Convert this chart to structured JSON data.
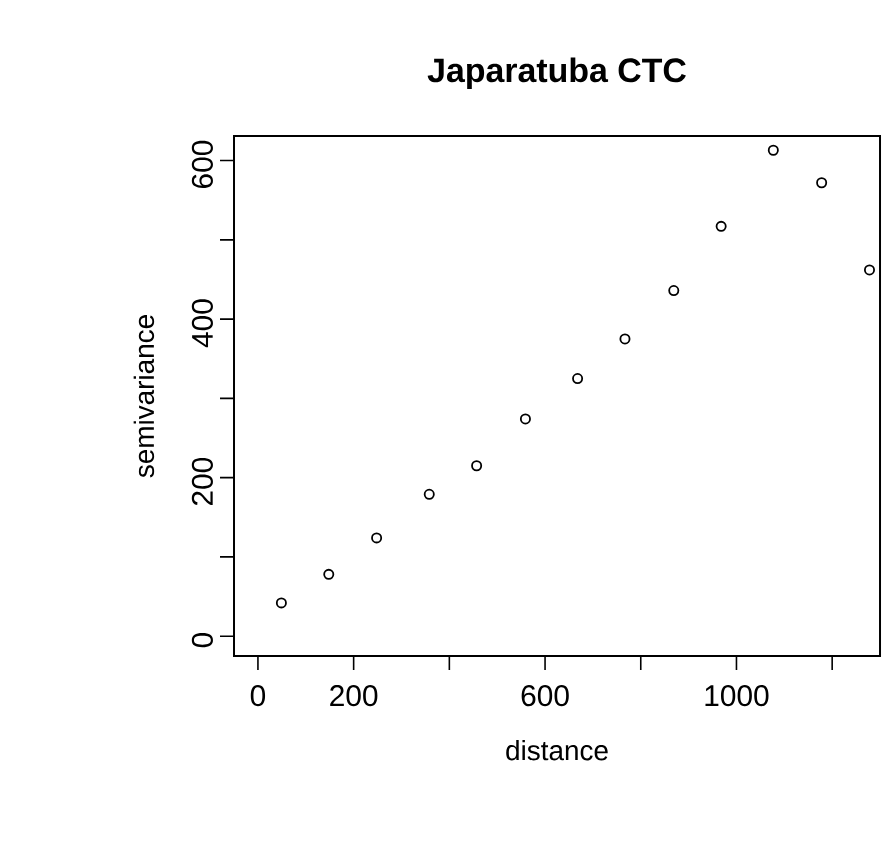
{
  "chart_data": {
    "type": "scatter",
    "title": "Japaratuba CTC",
    "xlabel": "distance",
    "ylabel": "semivariance",
    "x": [
      49,
      148,
      248,
      358,
      457,
      559,
      668,
      767,
      869,
      968,
      1077,
      1178,
      1278
    ],
    "values": [
      42,
      78,
      124,
      179,
      215,
      274,
      325,
      375,
      436,
      517,
      613,
      572,
      462
    ],
    "color": "#000000",
    "marker": "circle",
    "xlim": [
      -50,
      1300
    ],
    "ylim": [
      -25,
      631
    ],
    "xticks": [
      0,
      200,
      {
        "value": 400,
        "label": null
      },
      600,
      {
        "value": 800,
        "label": null
      },
      1000,
      {
        "value": 1200,
        "label": null
      }
    ],
    "yticks": [
      0,
      {
        "value": 100,
        "label": null
      },
      200,
      {
        "value": 300,
        "label": null
      },
      400,
      {
        "value": 500,
        "label": null
      },
      600
    ]
  }
}
